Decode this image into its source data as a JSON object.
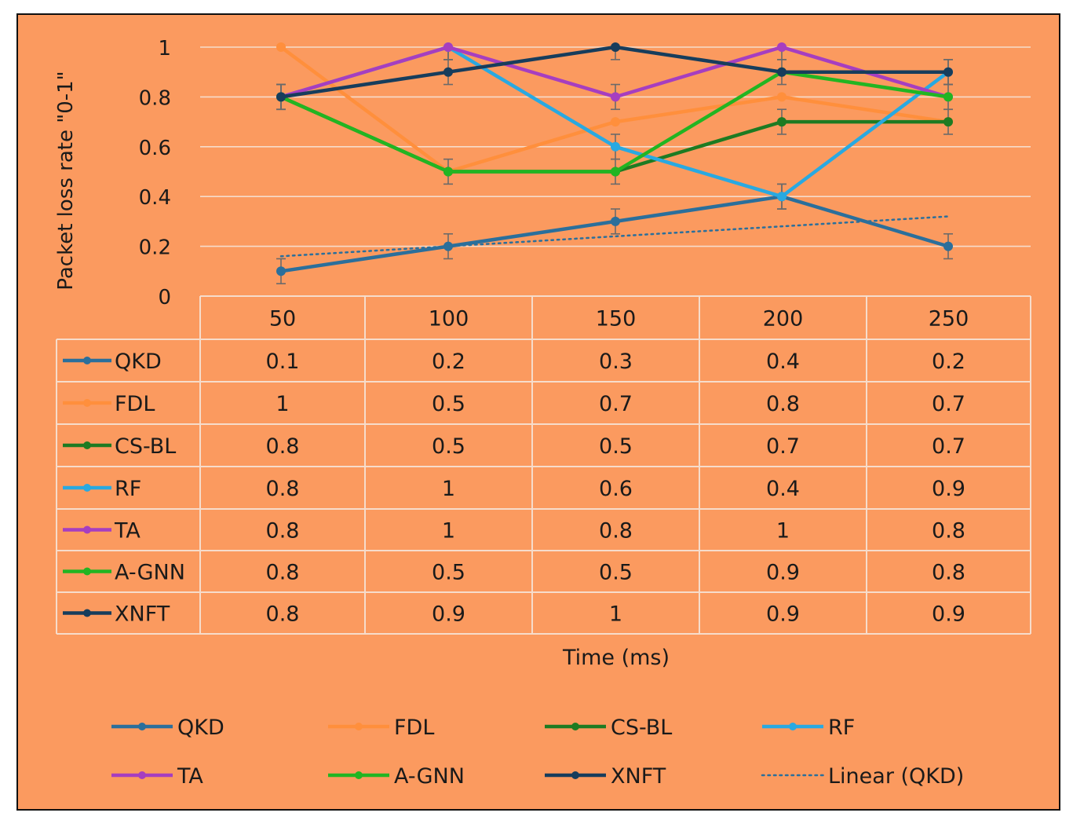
{
  "chart_data": {
    "type": "line",
    "title": "",
    "xlabel": "Time (ms)",
    "ylabel": "Packet loss rate  \"0-1\"",
    "categories": [
      "50",
      "100",
      "150",
      "200",
      "250"
    ],
    "ylim": [
      0,
      1
    ],
    "yticks": [
      "0",
      "0.2",
      "0.4",
      "0.6",
      "0.8",
      "1"
    ],
    "grid": true,
    "legend_position": "bottom",
    "data_table": true,
    "background_color": "#fb9a5f",
    "series": [
      {
        "name": "QKD",
        "values": [
          0.1,
          0.2,
          0.3,
          0.4,
          0.2
        ],
        "color": "#2b6f9b",
        "error_bars": true
      },
      {
        "name": "FDL",
        "values": [
          1,
          0.5,
          0.7,
          0.8,
          0.7
        ],
        "color": "#ff8f3c",
        "error_bars": false
      },
      {
        "name": "CS-BL",
        "values": [
          0.8,
          0.5,
          0.5,
          0.7,
          0.7
        ],
        "color": "#1e7b22",
        "error_bars": true
      },
      {
        "name": "RF",
        "values": [
          0.8,
          1,
          0.6,
          0.4,
          0.9
        ],
        "color": "#29a9e1",
        "error_bars": true
      },
      {
        "name": "TA",
        "values": [
          0.8,
          1,
          0.8,
          1,
          0.8
        ],
        "color": "#a63ec0",
        "error_bars": true
      },
      {
        "name": "A-GNN",
        "values": [
          0.8,
          0.5,
          0.5,
          0.9,
          0.8
        ],
        "color": "#22b522",
        "error_bars": false
      },
      {
        "name": "XNFT",
        "values": [
          0.8,
          0.9,
          1,
          0.9,
          0.9
        ],
        "color": "#173d5c",
        "error_bars": true
      }
    ],
    "trendline": {
      "name": "Linear (QKD)",
      "of": "QKD",
      "values": [
        0.16,
        0.2,
        0.24,
        0.28,
        0.32
      ],
      "color": "#2b6f9b",
      "style": "dotted"
    }
  }
}
